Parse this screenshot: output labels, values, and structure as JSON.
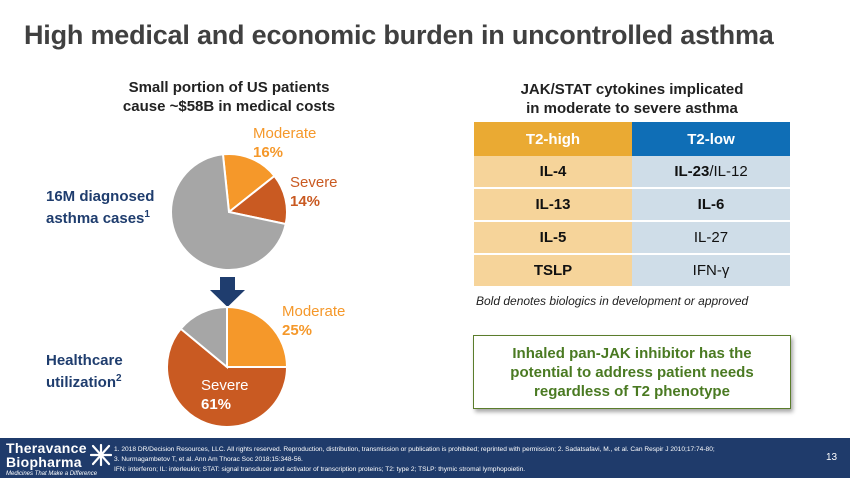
{
  "title": "High medical and economic burden in uncontrolled asthma",
  "left_panel": {
    "heading_line1": "Small portion of US patients",
    "heading_line2": "cause ~$58B in medical costs",
    "pie_top": {
      "label_line1": "16M diagnosed",
      "label_line2": "asthma cases",
      "footnote": "1",
      "slices": [
        {
          "name": "Moderate",
          "pct_label": "16%",
          "value": 16,
          "color": "#f5982a"
        },
        {
          "name": "Severe",
          "pct_label": "14%",
          "value": 14,
          "color": "#c95a22"
        },
        {
          "name": "Other",
          "pct_label": "",
          "value": 70,
          "color": "#a6a6a6"
        }
      ]
    },
    "arrow_icon": "down-arrow-icon",
    "pie_bottom": {
      "label_line1": "Healthcare",
      "label_line2": "utilization",
      "footnote": "2",
      "slices": [
        {
          "name": "Moderate",
          "pct_label": "25%",
          "value": 25,
          "color": "#f5982a"
        },
        {
          "name": "Severe",
          "pct_label": "61%",
          "value": 61,
          "color": "#c95a22"
        },
        {
          "name": "Other",
          "pct_label": "",
          "value": 14,
          "color": "#a6a6a6"
        }
      ]
    }
  },
  "right_panel": {
    "heading_line1": "JAK/STAT cytokines implicated",
    "heading_line2": "in moderate to severe asthma",
    "table": {
      "headers": [
        "T2-high",
        "T2-low"
      ],
      "header_colors": [
        "#eaaa33",
        "#0f6eb6"
      ],
      "rows": [
        {
          "high": "IL-4",
          "high_bold": true,
          "low_bold_part": "IL-23",
          "low_rest": "/IL-12"
        },
        {
          "high": "IL-13",
          "high_bold": true,
          "low_bold_part": "IL-6",
          "low_rest": ""
        },
        {
          "high": "IL-5",
          "high_bold": true,
          "low_bold_part": "",
          "low_rest": "IL-27"
        },
        {
          "high": "TSLP",
          "high_bold": true,
          "low_bold_part": "",
          "low_rest": "IFN-γ"
        }
      ]
    },
    "note": "Bold denotes biologics in development or approved",
    "callout_line1": "Inhaled pan-JAK inhibitor has the",
    "callout_line2": "potential to address patient needs",
    "callout_line3": "regardless of T2 phenotype"
  },
  "footer": {
    "logo_line1": "Theravance",
    "logo_line2": "Biopharma",
    "logo_tagline": "Medicines That Make a Difference",
    "ref_line1": "1. 2018 DR/Decision Resources, LLC.  All rights reserved.  Reproduction, distribution, transmission or publication is prohibited; reprinted with permission; 2. Sadatsafavi, M., et al. Can Respir J 2010;17:74-80;",
    "ref_line2": "3. Nurmagambetov T, et al.  Ann Am Thorac Soc 2018;15:348-56.",
    "ref_line3": "IFN:  interferon; IL: interleukin; STAT:  signal transducer and activator of transcription proteins; T2: type 2; TSLP:  thymic stromal lymphopoietin.",
    "page_number": "13"
  }
}
